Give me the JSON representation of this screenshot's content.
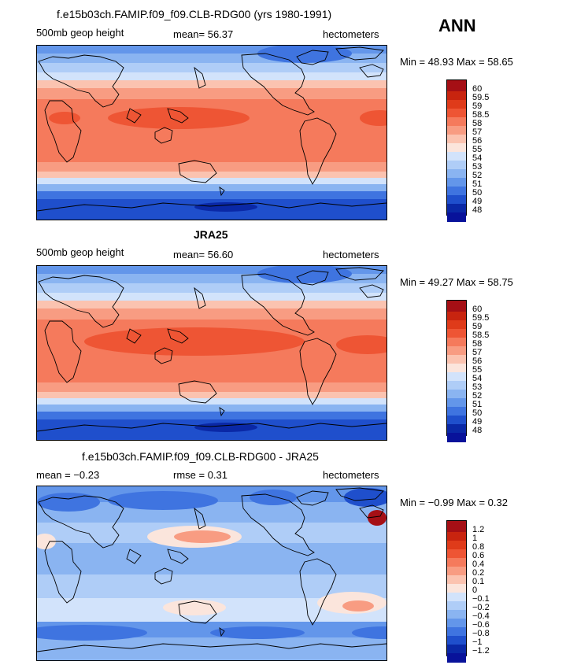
{
  "season": "ANN",
  "panels": [
    {
      "title": "f.e15b03ch.FAMIP.f09_f09.CLB-RDG00 (yrs 1980-1991)",
      "left": "500mb geop height",
      "center": "mean=   56.37",
      "right": "hectometers",
      "minmax": "Min =   48.93  Max =   58.65",
      "levels": [
        "60",
        "59.5",
        "59",
        "58.5",
        "58",
        "57",
        "56",
        "55",
        "54",
        "53",
        "52",
        "51",
        "50",
        "49",
        "48"
      ],
      "colors": [
        "#a50f15",
        "#c8240f",
        "#df3b1a",
        "#ee5534",
        "#f57a5c",
        "#f89c82",
        "#fbc3b0",
        "#fbe5dc",
        "#d2e3fb",
        "#afcdf7",
        "#8ab4f1",
        "#6396ea",
        "#3f74e0",
        "#1f4fcc",
        "#0a28a6",
        "#08129a"
      ]
    },
    {
      "title": "JRA25",
      "left": "500mb geop height",
      "center": "mean=   56.60",
      "right": "hectometers",
      "minmax": "Min =   49.27  Max =   58.75",
      "levels": [
        "60",
        "59.5",
        "59",
        "58.5",
        "58",
        "57",
        "56",
        "55",
        "54",
        "53",
        "52",
        "51",
        "50",
        "49",
        "48"
      ],
      "colors": [
        "#a50f15",
        "#c8240f",
        "#df3b1a",
        "#ee5534",
        "#f57a5c",
        "#f89c82",
        "#fbc3b0",
        "#fbe5dc",
        "#d2e3fb",
        "#afcdf7",
        "#8ab4f1",
        "#6396ea",
        "#3f74e0",
        "#1f4fcc",
        "#0a28a6",
        "#08129a"
      ]
    },
    {
      "title": "f.e15b03ch.FAMIP.f09_f09.CLB-RDG00 - JRA25",
      "left": "mean =   −0.23",
      "center": "rmse =    0.31",
      "right": "hectometers",
      "minmax": "Min =   −0.99  Max =    0.32",
      "levels": [
        "1.2",
        "1",
        "0.8",
        "0.6",
        "0.4",
        "0.2",
        "0.1",
        "0",
        "−0.1",
        "−0.2",
        "−0.4",
        "−0.6",
        "−0.8",
        "−1",
        "−1.2"
      ],
      "colors": [
        "#a50f15",
        "#c8240f",
        "#df3b1a",
        "#ee5534",
        "#f57a5c",
        "#f89c82",
        "#fbc3b0",
        "#fbe5dc",
        "#d2e3fb",
        "#afcdf7",
        "#8ab4f1",
        "#6396ea",
        "#3f74e0",
        "#1f4fcc",
        "#0a28a6",
        "#08129a"
      ]
    }
  ],
  "chart_data": [
    {
      "type": "heatmap",
      "title": "f.e15b03ch.FAMIP.f09_f09.CLB-RDG00 (yrs 1980-1991)",
      "variable": "500mb geop height",
      "units": "hectometers",
      "mean": 56.37,
      "min": 48.93,
      "max": 58.65
    },
    {
      "type": "heatmap",
      "title": "JRA25",
      "variable": "500mb geop height",
      "units": "hectometers",
      "mean": 56.6,
      "min": 49.27,
      "max": 58.75
    },
    {
      "type": "heatmap",
      "title": "f.e15b03ch.FAMIP.f09_f09.CLB-RDG00 - JRA25",
      "units": "hectometers",
      "mean": -0.23,
      "rmse": 0.31,
      "min": -0.99,
      "max": 0.32
    }
  ]
}
